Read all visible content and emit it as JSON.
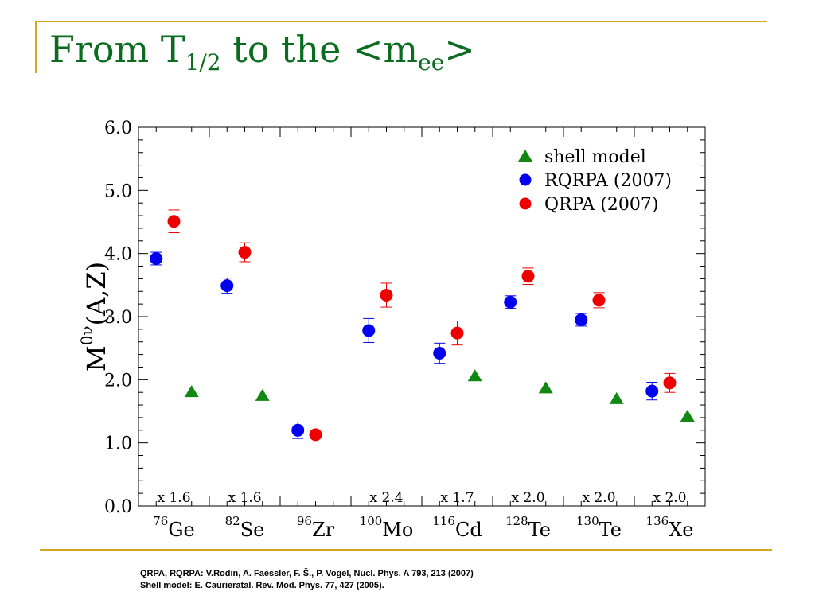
{
  "slide": {
    "title_pre": "From T",
    "title_sub1": "1/2",
    "title_mid": " to the <m",
    "title_sub2": "ee",
    "title_post": ">"
  },
  "references": [
    "QRPA, RQRPA: V.Rodin, A. Faessler, F. Š., P. Vogel, Nucl. Phys. A 793, 213 (2007)",
    "Shell model: E. Caurieratal. Rev. Mod. Phys. 77, 427 (2005)."
  ],
  "colors": {
    "frame": "#d9a520",
    "title": "#0b6b1e",
    "shell_model": "#118811",
    "rqrpa": "#0000ee",
    "qrpa": "#ee0000"
  },
  "chart_data": {
    "type": "scatter",
    "ylabel": {
      "main": "M",
      "sup": "0ν",
      "rest": "(A,Z)"
    },
    "ylim": [
      0,
      6
    ],
    "yticks": [
      "0.0",
      "1.0",
      "2.0",
      "3.0",
      "4.0",
      "5.0",
      "6.0"
    ],
    "xlim": [
      0,
      8
    ],
    "categories": [
      {
        "mass": "76",
        "symbol": "Ge",
        "scale": "x 1.6"
      },
      {
        "mass": "82",
        "symbol": "Se",
        "scale": "x 1.6"
      },
      {
        "mass": "96",
        "symbol": "Zr",
        "scale": ""
      },
      {
        "mass": "100",
        "symbol": "Mo",
        "scale": "x 2.4"
      },
      {
        "mass": "116",
        "symbol": "Cd",
        "scale": "x 1.7"
      },
      {
        "mass": "128",
        "symbol": "Te",
        "scale": "x 2.0"
      },
      {
        "mass": "130",
        "symbol": "Te",
        "scale": "x 2.0"
      },
      {
        "mass": "136",
        "symbol": "Xe",
        "scale": "x 2.0"
      }
    ],
    "legend_position": "top-right",
    "series": [
      {
        "name": "shell model",
        "marker": "triangle",
        "color": "#118811",
        "points": [
          {
            "x": 0.75,
            "y": 1.82
          },
          {
            "x": 1.75,
            "y": 1.76
          },
          {
            "x": 4.75,
            "y": 2.07
          },
          {
            "x": 5.75,
            "y": 1.88
          },
          {
            "x": 6.75,
            "y": 1.71
          },
          {
            "x": 7.75,
            "y": 1.43
          }
        ]
      },
      {
        "name": "RQRPA (2007)",
        "marker": "circle",
        "color": "#0000ee",
        "points": [
          {
            "x": 0.25,
            "y": 3.92,
            "err": 0.1
          },
          {
            "x": 1.25,
            "y": 3.49,
            "err": 0.12
          },
          {
            "x": 2.25,
            "y": 1.2,
            "err": 0.13
          },
          {
            "x": 3.25,
            "y": 2.78,
            "err": 0.19
          },
          {
            "x": 4.25,
            "y": 2.42,
            "err": 0.16
          },
          {
            "x": 5.25,
            "y": 3.23,
            "err": 0.1
          },
          {
            "x": 6.25,
            "y": 2.95,
            "err": 0.1
          },
          {
            "x": 7.25,
            "y": 1.82,
            "err": 0.14
          }
        ]
      },
      {
        "name": "QRPA (2007)",
        "marker": "circle",
        "color": "#ee0000",
        "points": [
          {
            "x": 0.5,
            "y": 4.51,
            "err": 0.18
          },
          {
            "x": 1.5,
            "y": 4.02,
            "err": 0.15
          },
          {
            "x": 2.5,
            "y": 1.13,
            "err": 0.04
          },
          {
            "x": 3.5,
            "y": 3.34,
            "err": 0.19
          },
          {
            "x": 4.5,
            "y": 2.74,
            "err": 0.19
          },
          {
            "x": 5.5,
            "y": 3.64,
            "err": 0.13
          },
          {
            "x": 6.5,
            "y": 3.26,
            "err": 0.12
          },
          {
            "x": 7.5,
            "y": 1.95,
            "err": 0.15
          }
        ]
      }
    ]
  }
}
